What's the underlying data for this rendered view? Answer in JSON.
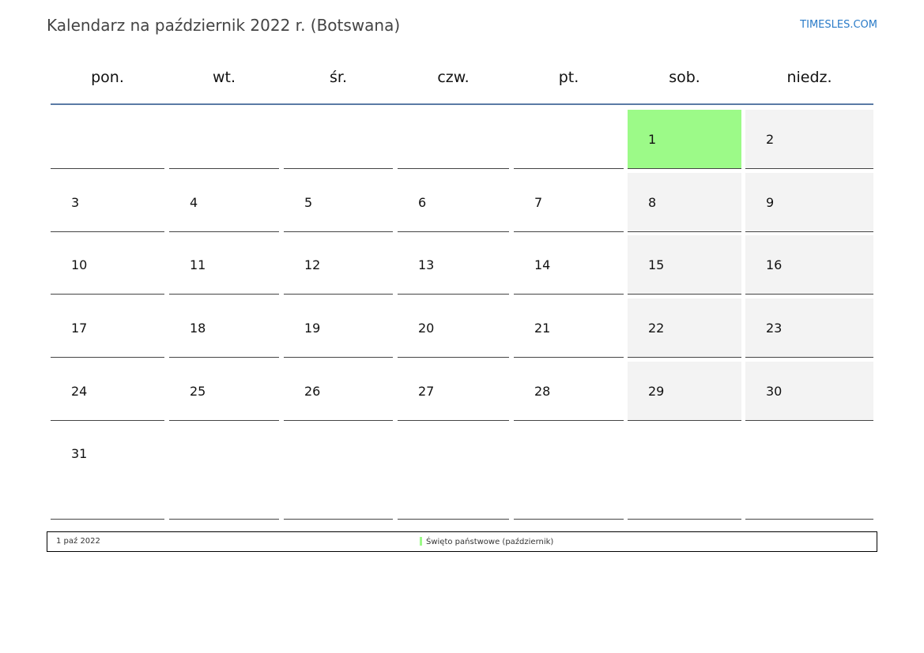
{
  "title": "Kalendarz na październik 2022 r. (Botswana)",
  "brand": "TIMESLES.COM",
  "weekdays": [
    "pon.",
    "wt.",
    "śr.",
    "czw.",
    "pt.",
    "sob.",
    "niedz."
  ],
  "weeks": [
    [
      null,
      null,
      null,
      null,
      null,
      1,
      2
    ],
    [
      3,
      4,
      5,
      6,
      7,
      8,
      9
    ],
    [
      10,
      11,
      12,
      13,
      14,
      15,
      16
    ],
    [
      17,
      18,
      19,
      20,
      21,
      22,
      23
    ],
    [
      24,
      25,
      26,
      27,
      28,
      29,
      30
    ],
    [
      31,
      null,
      null,
      null,
      null,
      null,
      null
    ]
  ],
  "holidays": [
    1
  ],
  "colors": {
    "holiday": "#9cfa88",
    "weekend": "#f3f3f3",
    "header_line": "#5a7aa5",
    "brand": "#2a7bc8"
  },
  "legend": {
    "date": "1 paź 2022",
    "label": "Święto państwowe (październik)"
  }
}
